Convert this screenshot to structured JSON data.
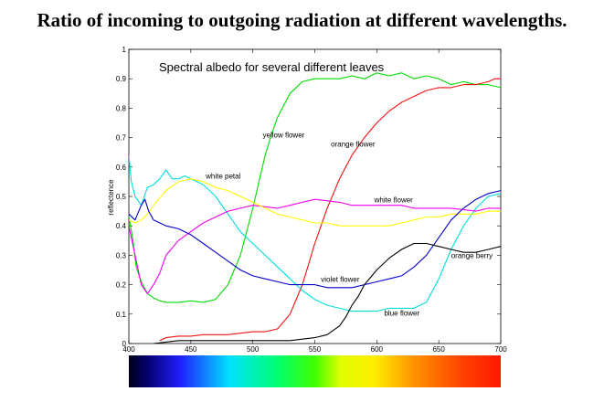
{
  "heading": "Ratio of incoming to outgoing radiation at different wavelengths.",
  "chart_data": {
    "type": "line",
    "title": "Spectral albedo for several different leaves",
    "xlabel": "",
    "ylabel": "reflectence",
    "xlim": [
      400,
      700
    ],
    "ylim": [
      0,
      1
    ],
    "xticks": [
      400,
      450,
      500,
      550,
      600,
      650,
      700
    ],
    "yticks": [
      0,
      0.1,
      0.2,
      0.3,
      0.4,
      0.5,
      0.6,
      0.7,
      0.8,
      0.9,
      1
    ],
    "series": [
      {
        "name": "yellow flower",
        "color": "#00dd00",
        "x": [
          400,
          403,
          406,
          410,
          415,
          420,
          425,
          430,
          440,
          450,
          460,
          470,
          480,
          490,
          495,
          500,
          505,
          510,
          515,
          520,
          530,
          540,
          550,
          560,
          570,
          580,
          590,
          600,
          610,
          620,
          630,
          640,
          650,
          660,
          670,
          680,
          690,
          700
        ],
        "y": [
          0.43,
          0.36,
          0.26,
          0.21,
          0.17,
          0.155,
          0.145,
          0.14,
          0.14,
          0.145,
          0.14,
          0.15,
          0.2,
          0.3,
          0.38,
          0.46,
          0.55,
          0.64,
          0.71,
          0.77,
          0.85,
          0.89,
          0.9,
          0.9,
          0.9,
          0.91,
          0.9,
          0.92,
          0.91,
          0.92,
          0.9,
          0.91,
          0.9,
          0.88,
          0.89,
          0.88,
          0.88,
          0.87
        ]
      },
      {
        "name": "orange flower",
        "color": "#ee1111",
        "x": [
          425,
          430,
          440,
          450,
          460,
          470,
          480,
          490,
          500,
          510,
          520,
          530,
          540,
          545,
          550,
          555,
          560,
          565,
          570,
          575,
          580,
          590,
          600,
          610,
          620,
          630,
          640,
          650,
          660,
          670,
          680,
          690,
          695,
          700
        ],
        "y": [
          0.01,
          0.02,
          0.025,
          0.025,
          0.03,
          0.03,
          0.03,
          0.035,
          0.04,
          0.04,
          0.05,
          0.1,
          0.2,
          0.27,
          0.34,
          0.4,
          0.46,
          0.51,
          0.56,
          0.6,
          0.64,
          0.7,
          0.75,
          0.79,
          0.82,
          0.84,
          0.86,
          0.87,
          0.87,
          0.88,
          0.88,
          0.89,
          0.9,
          0.9
        ]
      },
      {
        "name": "white petal",
        "color": "#00dddd",
        "x": [
          400,
          402,
          405,
          410,
          415,
          420,
          425,
          430,
          435,
          440,
          445,
          450,
          455,
          460,
          470,
          480,
          490,
          500,
          510,
          520,
          530,
          540,
          550,
          560,
          570,
          580,
          590,
          600,
          610,
          620,
          630,
          640,
          650,
          660,
          670,
          680,
          690,
          700
        ],
        "y": [
          0.64,
          0.55,
          0.5,
          0.47,
          0.53,
          0.54,
          0.56,
          0.59,
          0.56,
          0.56,
          0.57,
          0.56,
          0.55,
          0.54,
          0.5,
          0.44,
          0.38,
          0.34,
          0.3,
          0.26,
          0.22,
          0.18,
          0.15,
          0.13,
          0.12,
          0.11,
          0.11,
          0.11,
          0.12,
          0.12,
          0.12,
          0.14,
          0.22,
          0.32,
          0.4,
          0.46,
          0.5,
          0.51
        ]
      },
      {
        "name": "white flower",
        "color": "#ee00ee",
        "x": [
          400,
          405,
          410,
          415,
          420,
          425,
          430,
          440,
          450,
          460,
          470,
          480,
          490,
          500,
          510,
          520,
          530,
          540,
          550,
          560,
          570,
          580,
          590,
          600,
          610,
          620,
          630,
          640,
          650,
          660,
          670,
          680,
          690,
          700
        ],
        "y": [
          0.4,
          0.3,
          0.2,
          0.17,
          0.2,
          0.24,
          0.3,
          0.35,
          0.38,
          0.41,
          0.43,
          0.45,
          0.46,
          0.47,
          0.465,
          0.46,
          0.47,
          0.48,
          0.49,
          0.485,
          0.48,
          0.47,
          0.47,
          0.47,
          0.47,
          0.47,
          0.46,
          0.46,
          0.46,
          0.46,
          0.455,
          0.45,
          0.46,
          0.46
        ]
      },
      {
        "name": "white petal (yellow line)",
        "color": "#ffff00",
        "x": [
          400,
          405,
          410,
          415,
          420,
          430,
          440,
          450,
          460,
          470,
          480,
          490,
          500,
          510,
          520,
          530,
          540,
          550,
          560,
          570,
          580,
          590,
          600,
          610,
          620,
          630,
          640,
          650,
          660,
          670,
          680,
          690,
          700
        ],
        "y": [
          0.42,
          0.41,
          0.42,
          0.44,
          0.47,
          0.52,
          0.55,
          0.56,
          0.55,
          0.53,
          0.52,
          0.5,
          0.48,
          0.46,
          0.44,
          0.43,
          0.42,
          0.41,
          0.41,
          0.4,
          0.4,
          0.4,
          0.4,
          0.4,
          0.41,
          0.42,
          0.43,
          0.43,
          0.44,
          0.44,
          0.44,
          0.45,
          0.45
        ]
      },
      {
        "name": "violet flower",
        "color": "#0000cc",
        "x": [
          400,
          405,
          410,
          413,
          416,
          420,
          425,
          430,
          440,
          450,
          460,
          470,
          480,
          490,
          500,
          510,
          520,
          530,
          540,
          550,
          560,
          570,
          580,
          590,
          600,
          610,
          620,
          630,
          640,
          650,
          660,
          670,
          680,
          690,
          700
        ],
        "y": [
          0.44,
          0.42,
          0.47,
          0.49,
          0.45,
          0.42,
          0.41,
          0.4,
          0.39,
          0.37,
          0.34,
          0.31,
          0.28,
          0.25,
          0.23,
          0.22,
          0.21,
          0.2,
          0.2,
          0.2,
          0.19,
          0.19,
          0.19,
          0.2,
          0.21,
          0.22,
          0.23,
          0.26,
          0.3,
          0.36,
          0.42,
          0.46,
          0.49,
          0.51,
          0.52
        ]
      },
      {
        "name": "orange berry",
        "color": "#000000",
        "x": [
          420,
          430,
          440,
          450,
          460,
          470,
          480,
          490,
          500,
          510,
          520,
          530,
          540,
          550,
          560,
          570,
          575,
          580,
          585,
          590,
          600,
          610,
          620,
          630,
          640,
          650,
          660,
          670,
          680,
          690,
          700
        ],
        "y": [
          0.0,
          0.005,
          0.01,
          0.01,
          0.01,
          0.01,
          0.01,
          0.01,
          0.01,
          0.01,
          0.01,
          0.01,
          0.015,
          0.02,
          0.03,
          0.06,
          0.09,
          0.13,
          0.16,
          0.2,
          0.25,
          0.29,
          0.32,
          0.34,
          0.34,
          0.33,
          0.32,
          0.31,
          0.31,
          0.32,
          0.33
        ]
      }
    ],
    "annotations": [
      {
        "text": "yellow flower",
        "x": 508,
        "y": 0.7
      },
      {
        "text": "orange flower",
        "x": 563,
        "y": 0.67
      },
      {
        "text": "white petal",
        "x": 462,
        "y": 0.56
      },
      {
        "text": "white flower",
        "x": 598,
        "y": 0.48
      },
      {
        "text": "violet flower",
        "x": 555,
        "y": 0.21
      },
      {
        "text": "blue flower",
        "x": 606,
        "y": 0.095
      },
      {
        "text": "orange berry",
        "x": 660,
        "y": 0.29
      }
    ],
    "spectrum_bar": {
      "range_nm": [
        400,
        700
      ]
    }
  }
}
